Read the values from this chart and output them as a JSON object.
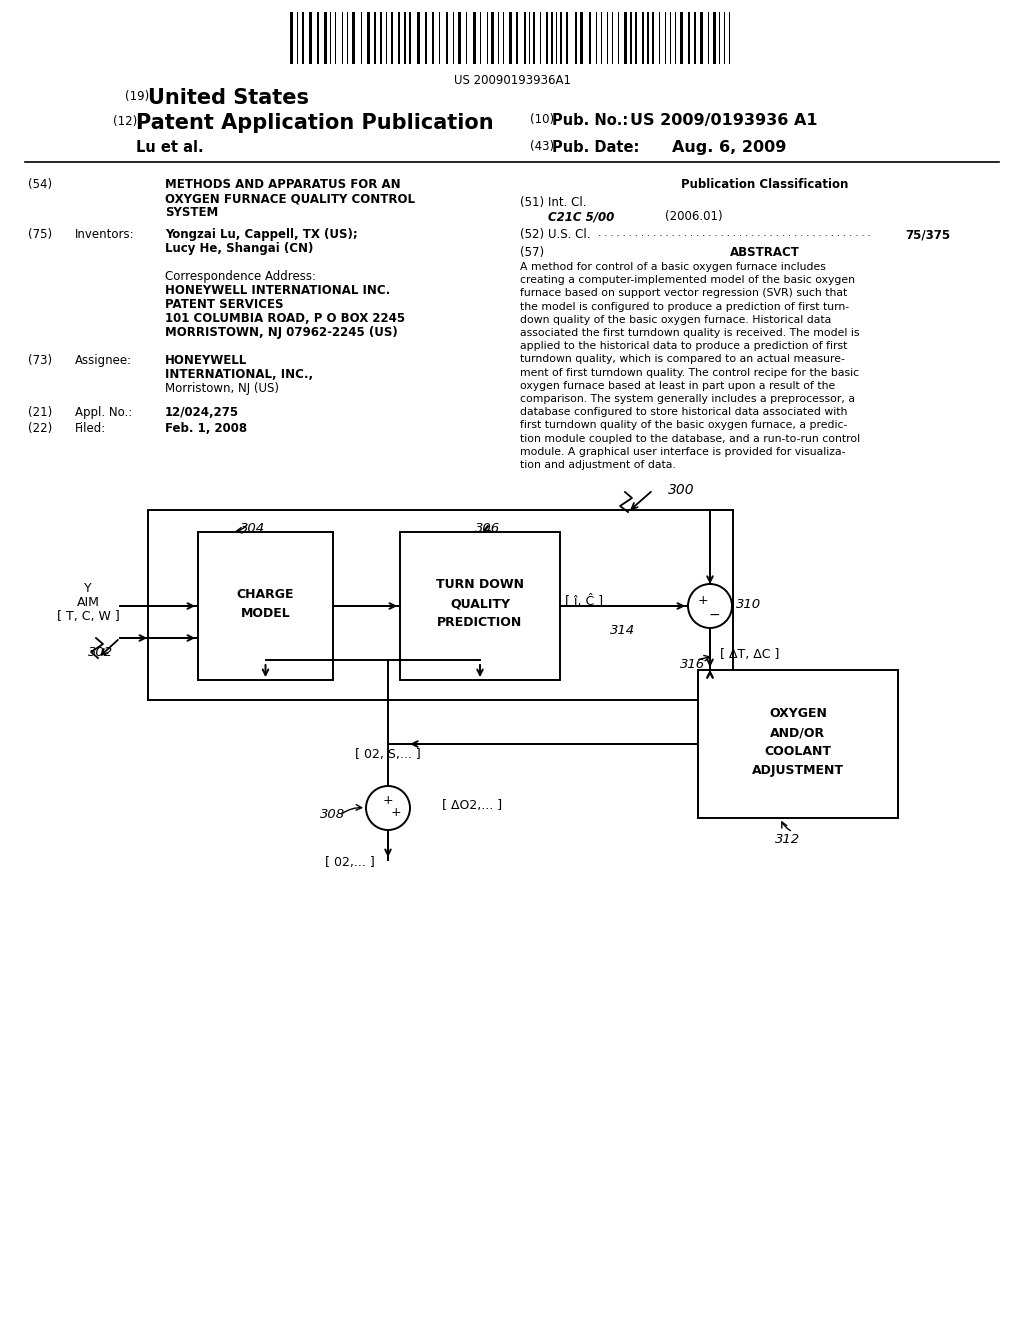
{
  "bg_color": "#ffffff",
  "fig_width": 10.24,
  "fig_height": 13.2,
  "dpi": 100,
  "header": {
    "barcode_text": "US 20090193936A1",
    "line1_num": "(19)",
    "line1_text": "United States",
    "line2_num": "(12)",
    "line2_text": "Patent Application Publication",
    "line3_left": "Lu et al.",
    "pub_no_num": "(10)",
    "pub_no_label": "Pub. No.:",
    "pub_no_val": "US 2009/0193936 A1",
    "pub_date_num": "(43)",
    "pub_date_label": "Pub. Date:",
    "pub_date_val": "Aug. 6, 2009"
  },
  "left_col": {
    "title_num": "(54)",
    "title_text": "METHODS AND APPARATUS FOR AN\nOXYGEN FURNACE QUALITY CONTROL\nSYSTEM",
    "inventors_num": "(75)",
    "inventors_label": "Inventors:",
    "inventors_text": "Yongzai Lu, Cappell, TX (US);\nLucy He, Shangai (CN)",
    "corr_label": "Correspondence Address:",
    "corr_line1": "HONEYWELL INTERNATIONAL INC.",
    "corr_line2": "PATENT SERVICES",
    "corr_line3": "101 COLUMBIA ROAD, P O BOX 2245",
    "corr_line4": "MORRISTOWN, NJ 07962-2245 (US)",
    "assignee_num": "(73)",
    "assignee_label": "Assignee:",
    "assignee_line1": "HONEYWELL",
    "assignee_line2": "INTERNATIONAL, INC.,",
    "assignee_line3": "Morristown, NJ (US)",
    "appl_num": "(21)",
    "appl_label": "Appl. No.:",
    "appl_val": "12/024,275",
    "filed_num": "(22)",
    "filed_label": "Filed:",
    "filed_val": "Feb. 1, 2008"
  },
  "right_col": {
    "pub_class_title": "Publication Classification",
    "intl_cl_num": "(51)",
    "intl_cl_label": "Int. Cl.",
    "intl_cl_val": "C21C 5/00",
    "intl_cl_year": "(2006.01)",
    "us_cl_num": "(52)",
    "us_cl_label": "U.S. Cl.",
    "us_cl_val": "75/375",
    "abstract_num": "(57)",
    "abstract_title": "ABSTRACT",
    "abstract_lines": [
      "A method for control of a basic oxygen furnace includes",
      "creating a computer-implemented model of the basic oxygen",
      "furnace based on support vector regression (SVR) such that",
      "the model is configured to produce a prediction of first turn-",
      "down quality of the basic oxygen furnace. Historical data",
      "associated the first turndown quality is received. The model is",
      "applied to the historical data to produce a prediction of first",
      "turndown quality, which is compared to an actual measure-",
      "ment of first turndown quality. The control recipe for the basic",
      "oxygen furnace based at least in part upon a result of the",
      "comparison. The system generally includes a preprocessor, a",
      "database configured to store historical data associated with",
      "first turndown quality of the basic oxygen furnace, a predic-",
      "tion module coupled to the database, and a run-to-run control",
      "module. A graphical user interface is provided for visualiza-",
      "tion and adjustment of data."
    ]
  },
  "diagram": {
    "fig_label": "300",
    "charge_model_label": "304",
    "charge_model_text": "CHARGE\nMODEL",
    "turndown_label": "306",
    "turndown_text": "TURN DOWN\nQUALITY\nPREDICTION",
    "sumjunc1_label": "308",
    "sumjunc2_label": "310",
    "oxygen_label": "312",
    "oxygen_text": "OXYGEN\nAND/OR\nCOOLANT\nADJUSTMENT",
    "ref314": "314",
    "ref316": "316",
    "ref302": "302",
    "input_label_y": "Y",
    "input_label_aim": "AIM",
    "input_label_tcw": "[ T, C, W ]",
    "output1_label": "[ î, Ĉ ]",
    "output2_label": "[ ΔT, ΔC ]",
    "signal1_label": "[ 02, S,... ]",
    "signal2_label": "[ ΔO2,... ]",
    "signal3_label": "[ 02,... ]",
    "plus_top": "+",
    "minus_right": "-",
    "plus_left": "+",
    "plus_bottom": "+"
  }
}
